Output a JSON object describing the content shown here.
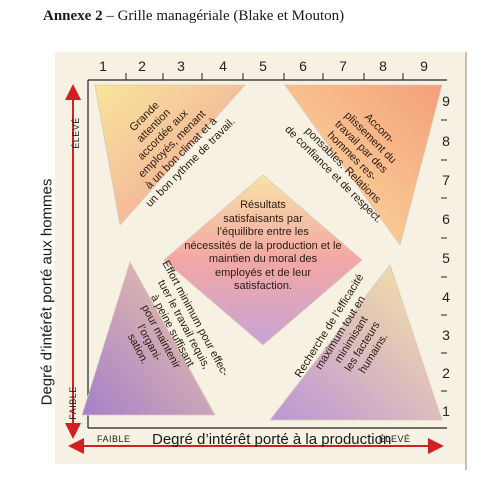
{
  "heading": {
    "prefix": "Annexe 2",
    "rest": " – Grille managériale (Blake et Mouton)"
  },
  "grid": {
    "x_ticks": [
      "1",
      "2",
      "3",
      "4",
      "5",
      "6",
      "7",
      "8",
      "9"
    ],
    "y_ticks": [
      "9",
      "8",
      "7",
      "6",
      "5",
      "4",
      "3",
      "2",
      "1"
    ],
    "x_axis_title": "Degré d’intérêt porté à la production",
    "y_axis_title": "Degré d’intérêt porté aux hommes",
    "x_low": "FAIBLE",
    "x_high": "ÉLEVÉ",
    "y_low": "FAIBLE",
    "y_high": "ÉLEVÉ"
  },
  "styles": {
    "top_left": {
      "lines": [
        "Grande",
        "attention",
        "accordée aux",
        "employés, menant",
        "à un bon climat et à",
        "un bon rythme de travail."
      ],
      "colors": [
        "#f9e59b",
        "#ef9e9a"
      ]
    },
    "top_right": {
      "lines": [
        "Accom-",
        "plissement du",
        "travail par des",
        "hommes res-",
        "ponsables. Relations",
        "de confiance et de respect."
      ],
      "colors": [
        "#f59f7a",
        "#fbe1a2"
      ]
    },
    "center": {
      "lines": [
        "Résultats",
        "satisfaisants par",
        "l’équilibre entre les",
        "nécessités de la production et le",
        "maintien du moral des",
        "employés et de leur",
        "satisfaction."
      ],
      "colors": [
        "#f8e2a6",
        "#f2a7a5",
        "#c7a4d6"
      ]
    },
    "bottom_left": {
      "lines": [
        "Effort minimum pour effec-",
        "tuer le travail requis,",
        "à peine suffisant",
        "pour maintenir",
        "l’organi-",
        "sation."
      ],
      "colors": [
        "#f1cba6",
        "#a57fc9"
      ]
    },
    "bottom_right": {
      "lines": [
        "Recherche de l’efficacité",
        "maximum tout en",
        "minimisant",
        "les facteurs",
        "humains."
      ],
      "colors": [
        "#bb94d6",
        "#fbe6a4"
      ]
    }
  },
  "colors": {
    "arrow": "#d51d24",
    "panel": "#f6f1e3"
  }
}
